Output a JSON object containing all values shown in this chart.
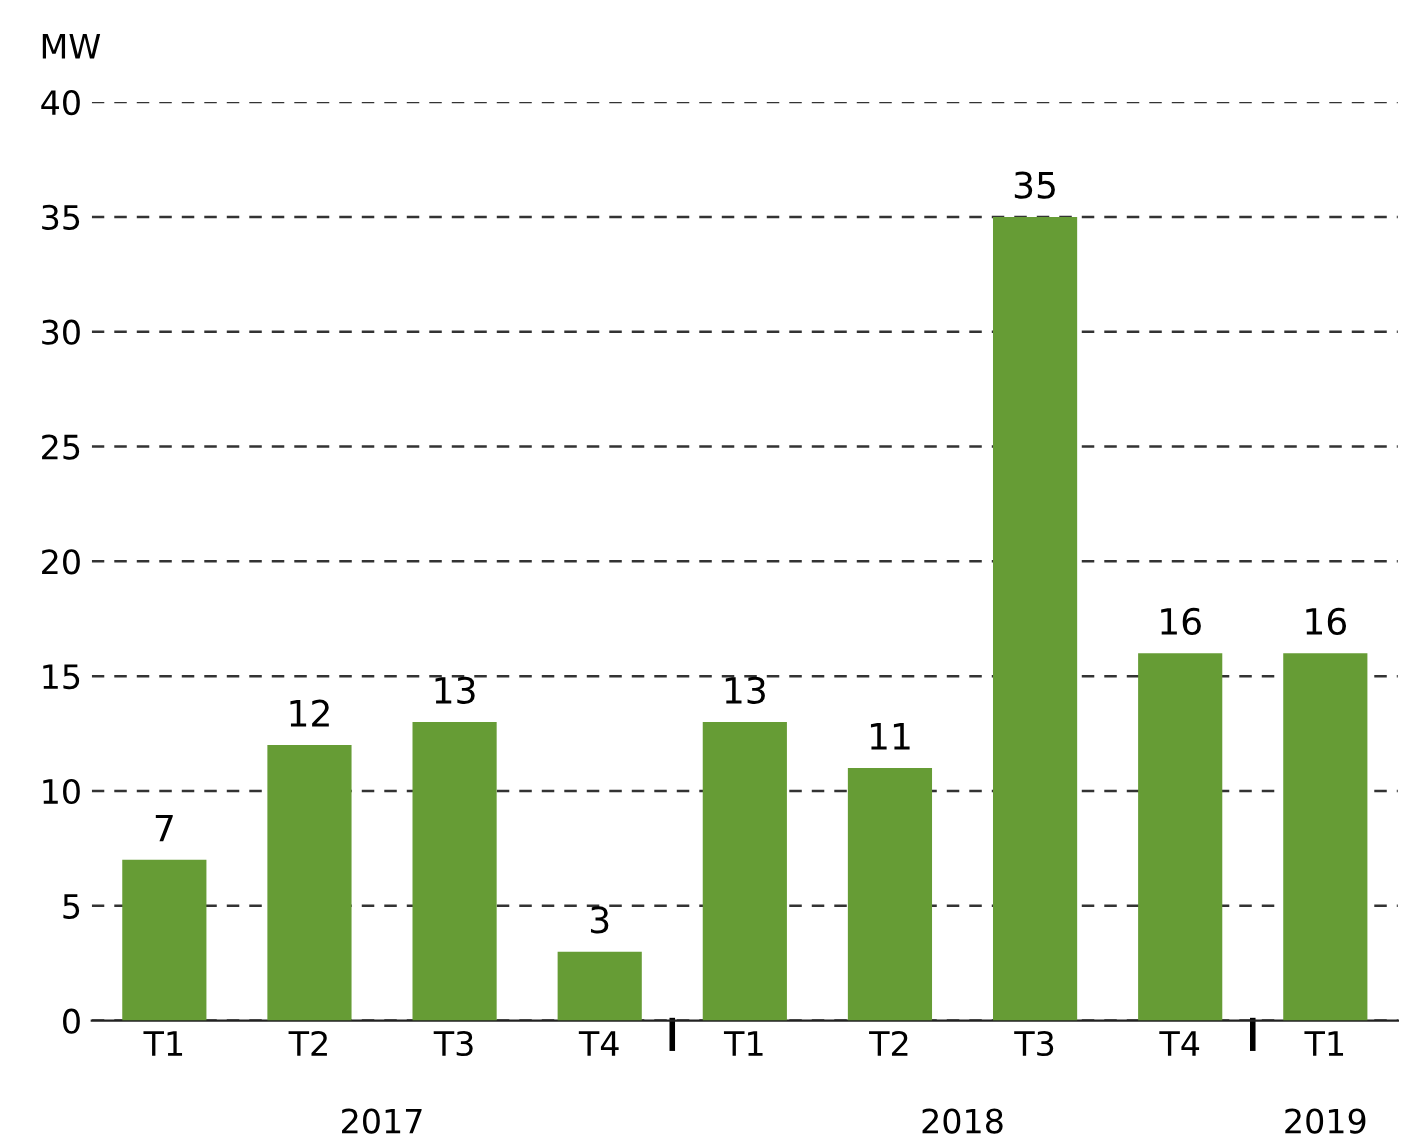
{
  "chart_data": {
    "type": "bar",
    "ylabel": "MW",
    "categories": [
      "T1",
      "T2",
      "T3",
      "T4",
      "T1",
      "T2",
      "T3",
      "T4",
      "T1"
    ],
    "values": [
      7,
      12,
      13,
      3,
      13,
      11,
      35,
      16,
      16
    ],
    "color": "#669c35",
    "data_labels": true,
    "ylim": [
      0,
      40
    ],
    "yticks": [
      0,
      5,
      10,
      15,
      20,
      25,
      30,
      35,
      40
    ],
    "grid": "y",
    "annotations": [
      "2017",
      "2018",
      "2019"
    ]
  }
}
